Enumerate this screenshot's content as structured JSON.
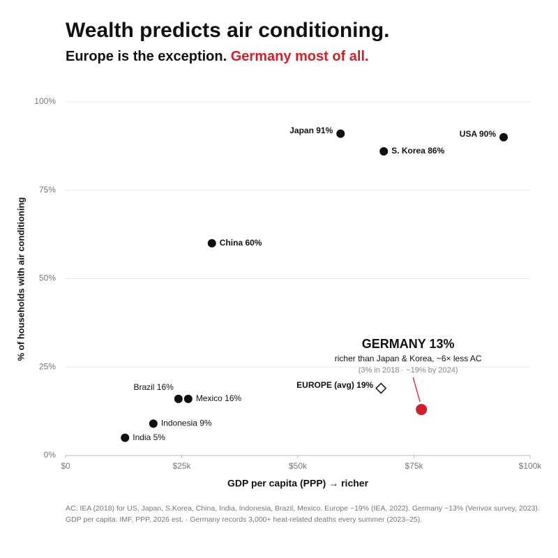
{
  "chart_data": {
    "type": "scatter",
    "title": "Wealth predicts air conditioning.",
    "subtitle": [
      "Europe is the exception.",
      "Germany most of all."
    ],
    "subtitle_colors": [
      "#111111",
      "#d0202a"
    ],
    "x_label": "GDP per capita (PPP) → richer",
    "y_label": "% of households with air conditioning",
    "xlim": [
      0,
      100000
    ],
    "xticks": [
      {
        "value": 0,
        "label": "$0"
      },
      {
        "value": 25000,
        "label": "$25k"
      },
      {
        "value": 50000,
        "label": "$50k"
      },
      {
        "value": 75000,
        "label": "$75k"
      },
      {
        "value": 100000,
        "label": "$100k"
      }
    ],
    "ylim": [
      0,
      100
    ],
    "yticks": [
      {
        "value": 0,
        "label": "0%"
      },
      {
        "value": 25,
        "label": "25%"
      },
      {
        "value": 50,
        "label": "50%"
      },
      {
        "value": 75,
        "label": "75%"
      },
      {
        "value": 100,
        "label": "100%"
      }
    ],
    "grid": true,
    "series": [
      {
        "color": "#111111",
        "marker": "circle",
        "x": [
          59200,
          94300,
          68500,
          31500,
          24300,
          26400,
          18900,
          12800
        ],
        "values": [
          91,
          90,
          86,
          60,
          16,
          16,
          9,
          5
        ],
        "value_labels": [
          "Japan 91%",
          "USA 90%",
          "S. Korea 86%",
          "China 60%",
          "Brazil 16%",
          "Mexico 16%",
          "Indonesia 9%",
          "India 5%"
        ]
      },
      {
        "color": "#111111",
        "marker": "diamond",
        "x": [
          67900
        ],
        "values": [
          19
        ],
        "value_labels": [
          "EUROPE (avg) 19%"
        ]
      },
      {
        "color": "#d0202a",
        "marker": "circle-large",
        "x": [
          76600
        ],
        "values": [
          13
        ],
        "value_labels": [
          "GERMANY 13%"
        ]
      }
    ],
    "annotations": [
      "richer than Japan & Korea, ~6× less AC",
      "(3% in 2018 · ~19% by 2024)"
    ],
    "footnotes": [
      "AC: IEA (2018) for US, Japan, S.Korea, China, India, Indonesia, Brazil, Mexico. Europe ~19% (IEA, 2022). Germany ~13% (Verivox survey, 2023).",
      "GDP per capita: IMF, PPP, 2026 est.  · Germany records 3,000+ heat-related deaths every summer (2023–25)."
    ]
  }
}
